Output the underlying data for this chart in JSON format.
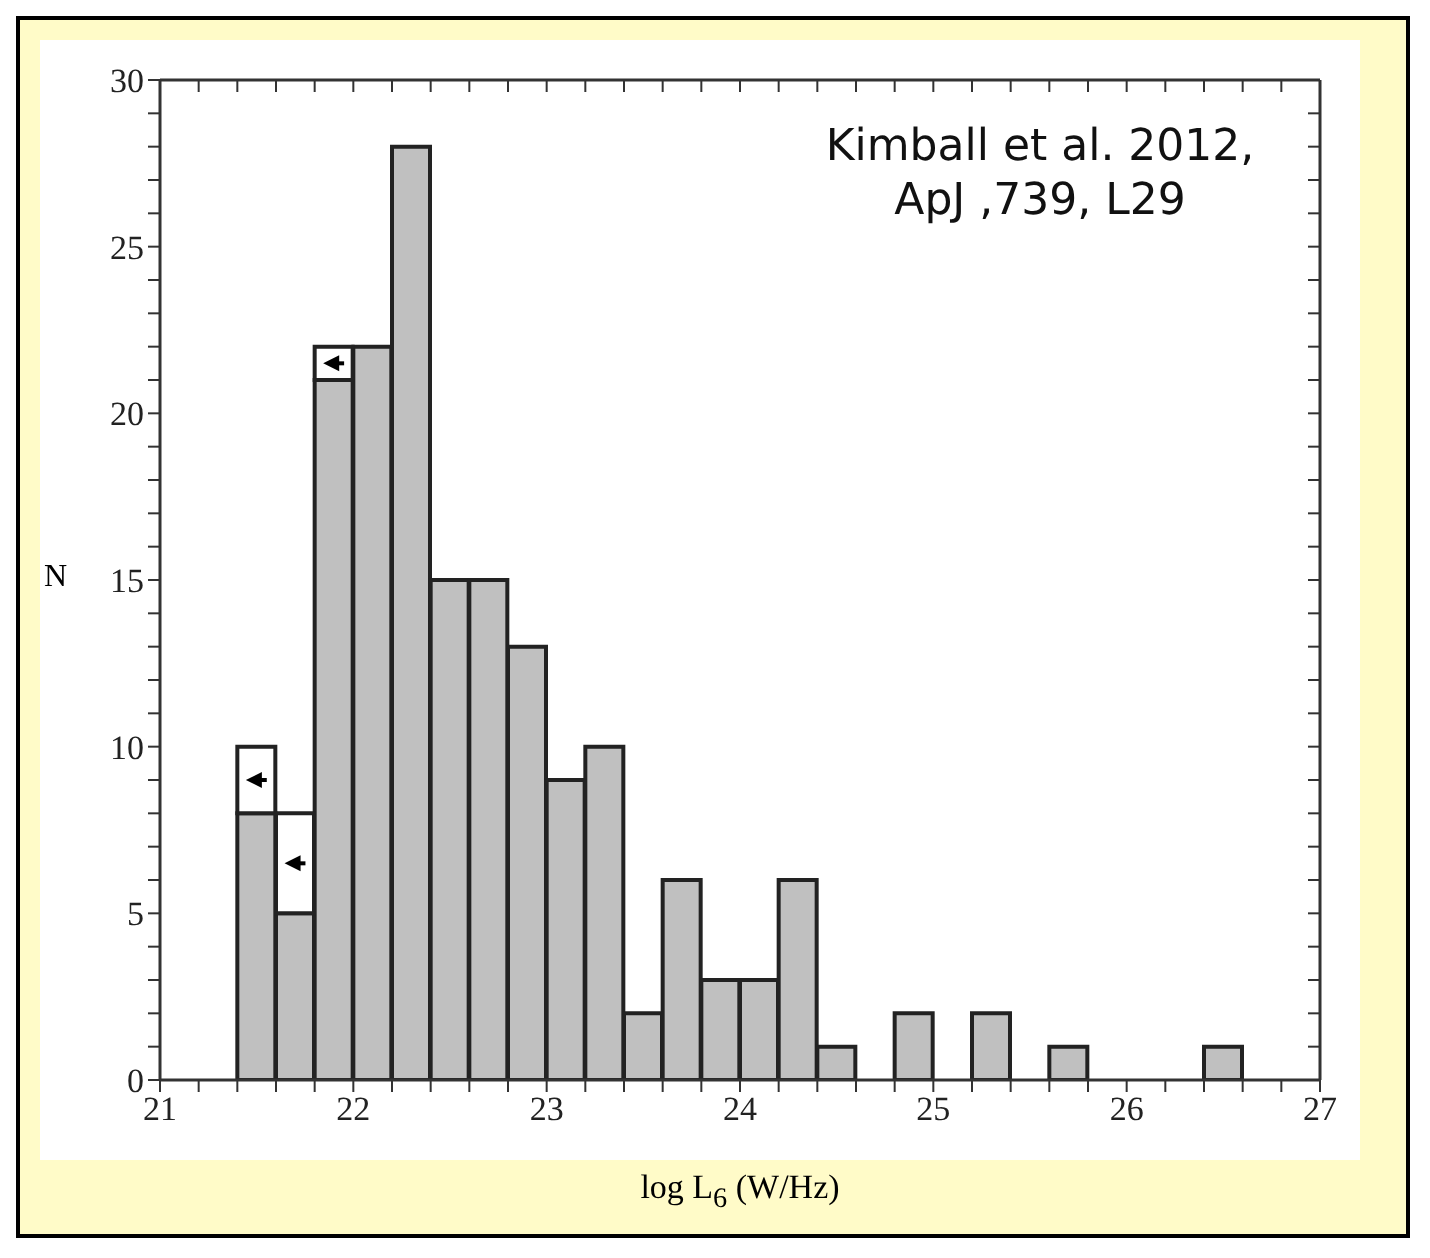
{
  "chart_data": {
    "type": "bar",
    "xlabel": "log L$_{6}$ (W/Hz)",
    "ylabel": "N",
    "annotations": [
      "Kimball et al. 2012, ApJ ,739, L29"
    ],
    "x": [
      21.5,
      21.7,
      21.9,
      22.1,
      22.3,
      22.5,
      22.7,
      22.9,
      23.1,
      23.3,
      23.5,
      23.7,
      23.9,
      24.1,
      24.3,
      24.5,
      24.7,
      24.9,
      25.1,
      25.3,
      25.5,
      25.7,
      25.9,
      26.1,
      26.3,
      26.5
    ],
    "stacked": true,
    "series": [
      {
        "color": "#c0c0c0",
        "values": [
          8,
          5,
          21,
          22,
          28,
          15,
          15,
          13,
          9,
          10,
          2,
          6,
          3,
          3,
          6,
          1,
          0,
          2,
          0,
          2,
          0,
          1,
          0,
          0,
          0,
          1
        ]
      },
      {
        "color": "#ffffff",
        "values": [
          2,
          3,
          1,
          0,
          0,
          0,
          0,
          0,
          0,
          0,
          0,
          0,
          0,
          0,
          0,
          0,
          0,
          0,
          0,
          0,
          0,
          0,
          0,
          0,
          0,
          0
        ]
      }
    ],
    "xlim": [
      21,
      27
    ],
    "ylim": [
      0,
      30
    ],
    "xticks": [
      21,
      {
        "value": 21.2,
        "label": null
      },
      {
        "value": 21.4,
        "label": null
      },
      {
        "value": 21.6,
        "label": null
      },
      {
        "value": 21.8,
        "label": null
      },
      22,
      {
        "value": 22.2,
        "label": null
      },
      {
        "value": 22.4,
        "label": null
      },
      {
        "value": 22.6,
        "label": null
      },
      {
        "value": 22.8,
        "label": null
      },
      23,
      {
        "value": 23.2,
        "label": null
      },
      {
        "value": 23.4,
        "label": null
      },
      {
        "value": 23.6,
        "label": null
      },
      {
        "value": 23.8,
        "label": null
      },
      24,
      {
        "value": 24.2,
        "label": null
      },
      {
        "value": 24.4,
        "label": null
      },
      {
        "value": 24.6,
        "label": null
      },
      {
        "value": 24.8,
        "label": null
      },
      25,
      {
        "value": 25.2,
        "label": null
      },
      {
        "value": 25.4,
        "label": null
      },
      {
        "value": 25.6,
        "label": null
      },
      {
        "value": 25.8,
        "label": null
      },
      26,
      {
        "value": 26.2,
        "label": null
      },
      {
        "value": 26.4,
        "label": null
      },
      {
        "value": 26.6,
        "label": null
      },
      {
        "value": 26.8,
        "label": null
      },
      27
    ],
    "yticks": [
      0,
      {
        "value": 1,
        "label": null
      },
      {
        "value": 2,
        "label": null
      },
      {
        "value": 3,
        "label": null
      },
      {
        "value": 4,
        "label": null
      },
      5,
      {
        "value": 6,
        "label": null
      },
      {
        "value": 7,
        "label": null
      },
      {
        "value": 8,
        "label": null
      },
      {
        "value": 9,
        "label": null
      },
      10,
      {
        "value": 11,
        "label": null
      },
      {
        "value": 12,
        "label": null
      },
      {
        "value": 13,
        "label": null
      },
      {
        "value": 14,
        "label": null
      },
      15,
      {
        "value": 16,
        "label": null
      },
      {
        "value": 17,
        "label": null
      },
      {
        "value": 18,
        "label": null
      },
      {
        "value": 19,
        "label": null
      },
      20,
      {
        "value": 21,
        "label": null
      },
      {
        "value": 22,
        "label": null
      },
      {
        "value": 23,
        "label": null
      },
      {
        "value": 24,
        "label": null
      },
      25,
      {
        "value": 26,
        "label": null
      },
      {
        "value": 27,
        "label": null
      },
      {
        "value": 28,
        "label": null
      },
      {
        "value": 29,
        "label": null
      },
      30
    ],
    "grid": false,
    "legend": false
  }
}
